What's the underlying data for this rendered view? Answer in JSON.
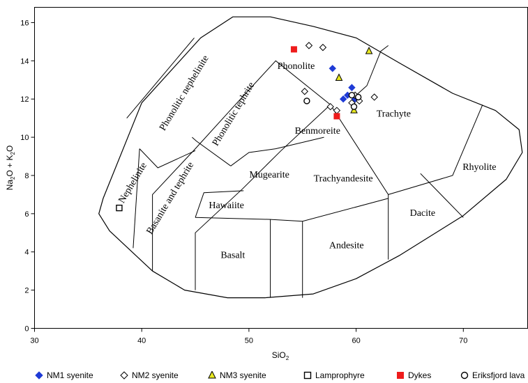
{
  "chart_data": {
    "type": "scatter",
    "title": "",
    "xlabel_main": "SiO",
    "xlabel_sub": "2",
    "ylabel_parts": [
      {
        "t": "Na",
        "sub": false
      },
      {
        "t": "2",
        "sub": true
      },
      {
        "t": "O + K",
        "sub": false
      },
      {
        "t": "2",
        "sub": true
      },
      {
        "t": "O",
        "sub": false
      }
    ],
    "xlim": [
      30,
      76
    ],
    "ylim": [
      0,
      16.8
    ],
    "xticks": [
      30,
      40,
      50,
      60,
      70
    ],
    "yticks": [
      0,
      2,
      4,
      6,
      8,
      10,
      12,
      14,
      16
    ],
    "grid": false,
    "legend_position": "bottom",
    "field_boundary": [
      [
        36.4,
        6.8
      ],
      [
        36.0,
        6.0
      ],
      [
        37.0,
        5.1
      ],
      [
        41.0,
        3.0
      ],
      [
        44.0,
        2.0
      ],
      [
        48.0,
        1.6
      ],
      [
        51.5,
        1.6
      ],
      [
        56.0,
        1.8
      ],
      [
        60.0,
        2.6
      ],
      [
        64.0,
        3.8
      ],
      [
        70.0,
        5.9
      ],
      [
        74.0,
        7.8
      ],
      [
        75.5,
        9.2
      ],
      [
        75.2,
        10.4
      ],
      [
        73.0,
        11.4
      ],
      [
        69.0,
        12.3
      ],
      [
        64.0,
        13.9
      ],
      [
        60.0,
        15.2
      ],
      [
        56.0,
        15.8
      ],
      [
        52.0,
        16.3
      ],
      [
        48.5,
        16.3
      ],
      [
        45.5,
        15.2
      ],
      [
        40.0,
        11.8
      ],
      [
        36.4,
        6.8
      ]
    ],
    "field_lines": [
      [
        [
          41.0,
          3.0
        ],
        [
          41.0,
          7.0
        ],
        [
          45.0,
          9.4
        ],
        [
          48.4,
          11.5
        ],
        [
          52.5,
          14.0
        ],
        [
          57.6,
          11.7
        ],
        [
          63.0,
          7.0
        ],
        [
          69.0,
          8.0
        ],
        [
          71.8,
          11.7
        ]
      ],
      [
        [
          39.2,
          4.2
        ],
        [
          39.8,
          9.4
        ]
      ],
      [
        [
          45.0,
          2.0
        ],
        [
          45.0,
          5.0
        ],
        [
          49.4,
          7.3
        ],
        [
          53.0,
          9.3
        ],
        [
          57.6,
          11.7
        ]
      ],
      [
        [
          39.8,
          9.4
        ],
        [
          41.5,
          8.4
        ],
        [
          45.0,
          9.3
        ]
      ],
      [
        [
          44.7,
          10.0
        ],
        [
          45.1,
          9.8
        ],
        [
          48.3,
          8.5
        ]
      ],
      [
        [
          48.3,
          8.5
        ],
        [
          50.0,
          9.2
        ],
        [
          52.5,
          9.4
        ],
        [
          57.0,
          10.0
        ]
      ],
      [
        [
          45.0,
          5.8
        ],
        [
          52.0,
          5.7
        ],
        [
          52.0,
          1.6
        ]
      ],
      [
        [
          45.0,
          5.8
        ],
        [
          45.8,
          7.1
        ],
        [
          49.5,
          7.2
        ]
      ],
      [
        [
          55.0,
          1.6
        ],
        [
          55.0,
          5.6
        ],
        [
          63.0,
          6.8
        ]
      ],
      [
        [
          52.0,
          5.7
        ],
        [
          55.0,
          5.6
        ]
      ],
      [
        [
          63.0,
          7.0
        ],
        [
          63.0,
          3.6
        ]
      ],
      [
        [
          66.0,
          8.1
        ],
        [
          70.0,
          5.8
        ]
      ],
      [
        [
          60.0,
          12.2
        ],
        [
          61.0,
          12.7
        ],
        [
          62.3,
          14.5
        ],
        [
          63.0,
          14.8
        ]
      ],
      [
        [
          38.6,
          11.0
        ],
        [
          44.9,
          15.2
        ]
      ]
    ],
    "field_labels": [
      {
        "text": "Phonolite",
        "x": 54.4,
        "y": 13.7,
        "rot": 0
      },
      {
        "text": "Trachyte",
        "x": 63.5,
        "y": 11.2,
        "rot": 0
      },
      {
        "text": "Benmoreite",
        "x": 56.4,
        "y": 10.3,
        "rot": 0
      },
      {
        "text": "Rhyolite",
        "x": 71.5,
        "y": 8.4,
        "rot": 0
      },
      {
        "text": "Mugearite",
        "x": 51.9,
        "y": 8.0,
        "rot": 0
      },
      {
        "text": "Trachyandesite",
        "x": 58.8,
        "y": 7.8,
        "rot": 0
      },
      {
        "text": "Hawaiite",
        "x": 47.9,
        "y": 6.4,
        "rot": 0
      },
      {
        "text": "Dacite",
        "x": 66.2,
        "y": 6.0,
        "rot": 0
      },
      {
        "text": "Andesite",
        "x": 59.1,
        "y": 4.3,
        "rot": 0
      },
      {
        "text": "Basalt",
        "x": 48.5,
        "y": 3.8,
        "rot": 0
      },
      {
        "text": "Phonolitic nephelinite",
        "x": 44.0,
        "y": 12.3,
        "rot": -59
      },
      {
        "text": "Phonolitic tephrite",
        "x": 48.6,
        "y": 11.2,
        "rot": -59
      },
      {
        "text": "Nephelinite",
        "x": 39.2,
        "y": 7.6,
        "rot": -59
      },
      {
        "text": "Basanite and tephrite",
        "x": 42.7,
        "y": 6.8,
        "rot": -59
      }
    ],
    "series": [
      {
        "name": "NM1 syenite",
        "marker": "diamond-filled",
        "color": "#1f3bd6",
        "points": [
          [
            57.8,
            13.6
          ],
          [
            59.6,
            12.6
          ],
          [
            59.2,
            12.2
          ],
          [
            58.8,
            12.0
          ],
          [
            59.9,
            12.0
          ]
        ]
      },
      {
        "name": "NM2 syenite",
        "marker": "diamond-open",
        "color": "#000000",
        "points": [
          [
            55.6,
            14.8
          ],
          [
            56.9,
            14.7
          ],
          [
            55.2,
            12.4
          ],
          [
            57.6,
            11.6
          ],
          [
            58.2,
            11.4
          ],
          [
            59.9,
            12.2
          ],
          [
            60.3,
            11.9
          ],
          [
            61.7,
            12.1
          ],
          [
            59.6,
            11.8
          ]
        ]
      },
      {
        "name": "NM3 syenite",
        "marker": "triangle",
        "color": "#e8e820",
        "points": [
          [
            61.2,
            14.5
          ],
          [
            58.4,
            13.1
          ],
          [
            59.8,
            11.4
          ]
        ]
      },
      {
        "name": "Lamprophyre",
        "marker": "square-open",
        "color": "#000000",
        "points": [
          [
            37.9,
            6.3
          ]
        ]
      },
      {
        "name": "Dykes",
        "marker": "square-filled",
        "color": "#ee1c1c",
        "points": [
          [
            54.2,
            14.6
          ],
          [
            58.2,
            11.1
          ]
        ]
      },
      {
        "name": "Eriksfjord lava",
        "marker": "circle-open",
        "color": "#000000",
        "points": [
          [
            55.4,
            11.9
          ],
          [
            59.8,
            11.6
          ],
          [
            60.2,
            12.1
          ],
          [
            59.6,
            12.2
          ]
        ]
      }
    ]
  }
}
